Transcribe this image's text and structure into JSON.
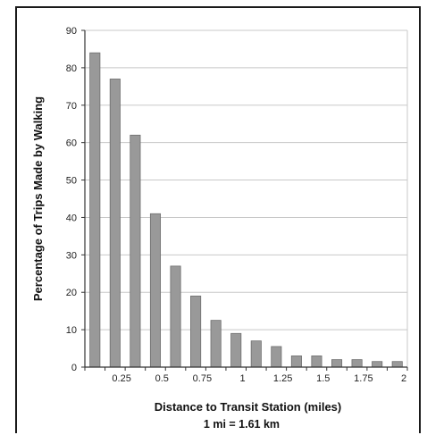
{
  "chart_data": {
    "type": "bar",
    "categories": [
      "",
      "0.25",
      "",
      "0.5",
      "",
      "0.75",
      "",
      "1",
      "",
      "1.25",
      "",
      "1.5",
      "",
      "1.75",
      "",
      "2"
    ],
    "values": [
      84,
      77,
      62,
      41,
      27,
      19,
      12.5,
      9,
      7,
      5.5,
      3,
      3,
      2,
      2,
      1.5,
      1.5
    ],
    "title": "",
    "xlabel": "Distance to Transit Station (miles)",
    "xlabel_note": "1 mi = 1.61 km",
    "ylabel": "Percentage of Trips Made by Walking",
    "ylim": [
      0,
      90
    ],
    "yticks": [
      0,
      10,
      20,
      30,
      40,
      50,
      60,
      70,
      80,
      90
    ],
    "grid": true,
    "bar_color": "#999999",
    "bar_edge_color": "#6e6e6e",
    "grid_color": "#c8c8c8"
  }
}
